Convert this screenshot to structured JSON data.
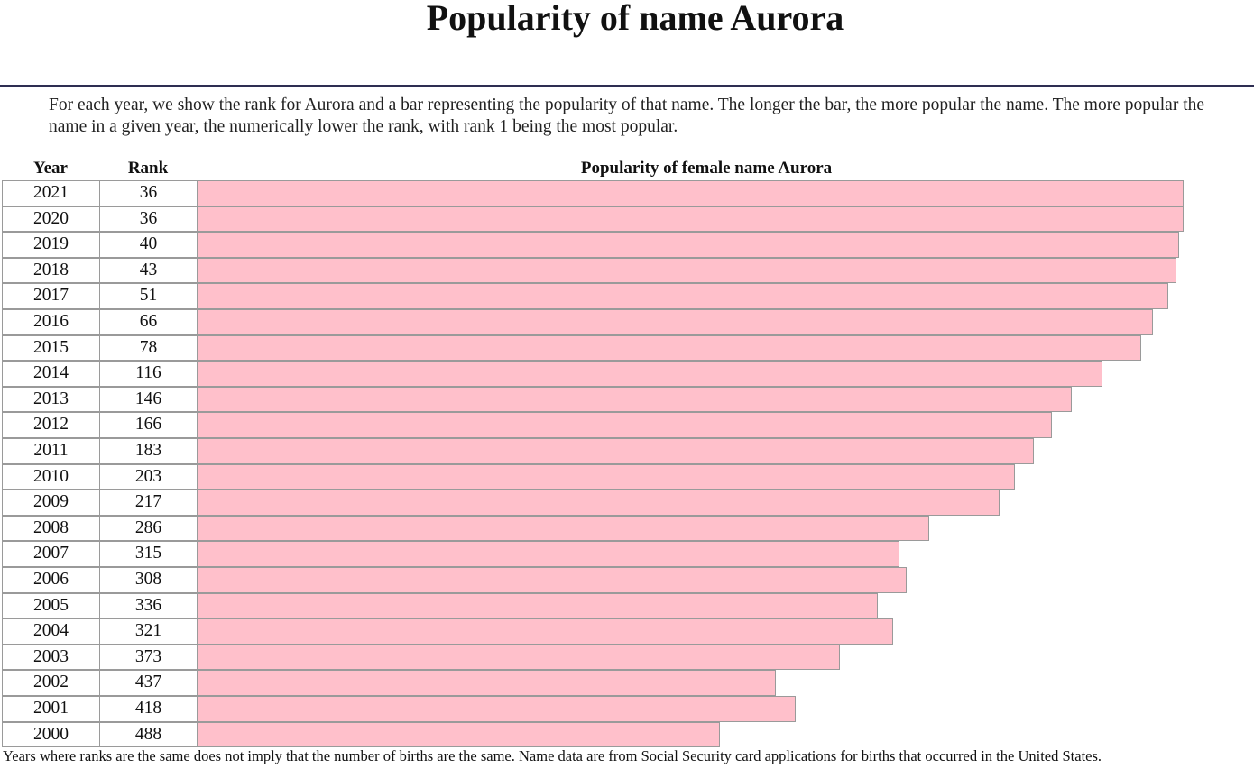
{
  "page": {
    "title": "Popularity of name Aurora",
    "intro": "For each year, we show the rank for Aurora and a bar representing the popularity of that name. The longer the bar, the more popular the name. The more popular the name in a given year, the numerically lower the rank, with rank 1 being the most popular.",
    "footnote": "Years where ranks are the same does not imply that the number of births are the same. Name data are from Social Security card applications for births that occurred in the United States."
  },
  "colors": {
    "bar": "#ffc0cb",
    "rule": "#2e2e52"
  },
  "chart_data": {
    "type": "bar",
    "orientation": "horizontal",
    "headers": {
      "year": "Year",
      "rank": "Rank",
      "popularity": "Popularity of female name Aurora"
    },
    "categories": [
      "2021",
      "2020",
      "2019",
      "2018",
      "2017",
      "2016",
      "2015",
      "2014",
      "2013",
      "2012",
      "2011",
      "2010",
      "2009",
      "2008",
      "2007",
      "2006",
      "2005",
      "2004",
      "2003",
      "2002",
      "2001",
      "2000"
    ],
    "ranks": [
      36,
      36,
      40,
      43,
      51,
      66,
      78,
      116,
      146,
      166,
      183,
      203,
      217,
      286,
      315,
      308,
      336,
      321,
      373,
      437,
      418,
      488
    ],
    "popularity_fraction": [
      1.0,
      1.0,
      0.9954,
      0.9927,
      0.9845,
      0.9689,
      0.9571,
      0.9177,
      0.8867,
      0.8665,
      0.8483,
      0.8291,
      0.8136,
      0.7422,
      0.7121,
      0.7194,
      0.6904,
      0.7057,
      0.652,
      0.5864,
      0.6067,
      0.5306
    ]
  }
}
